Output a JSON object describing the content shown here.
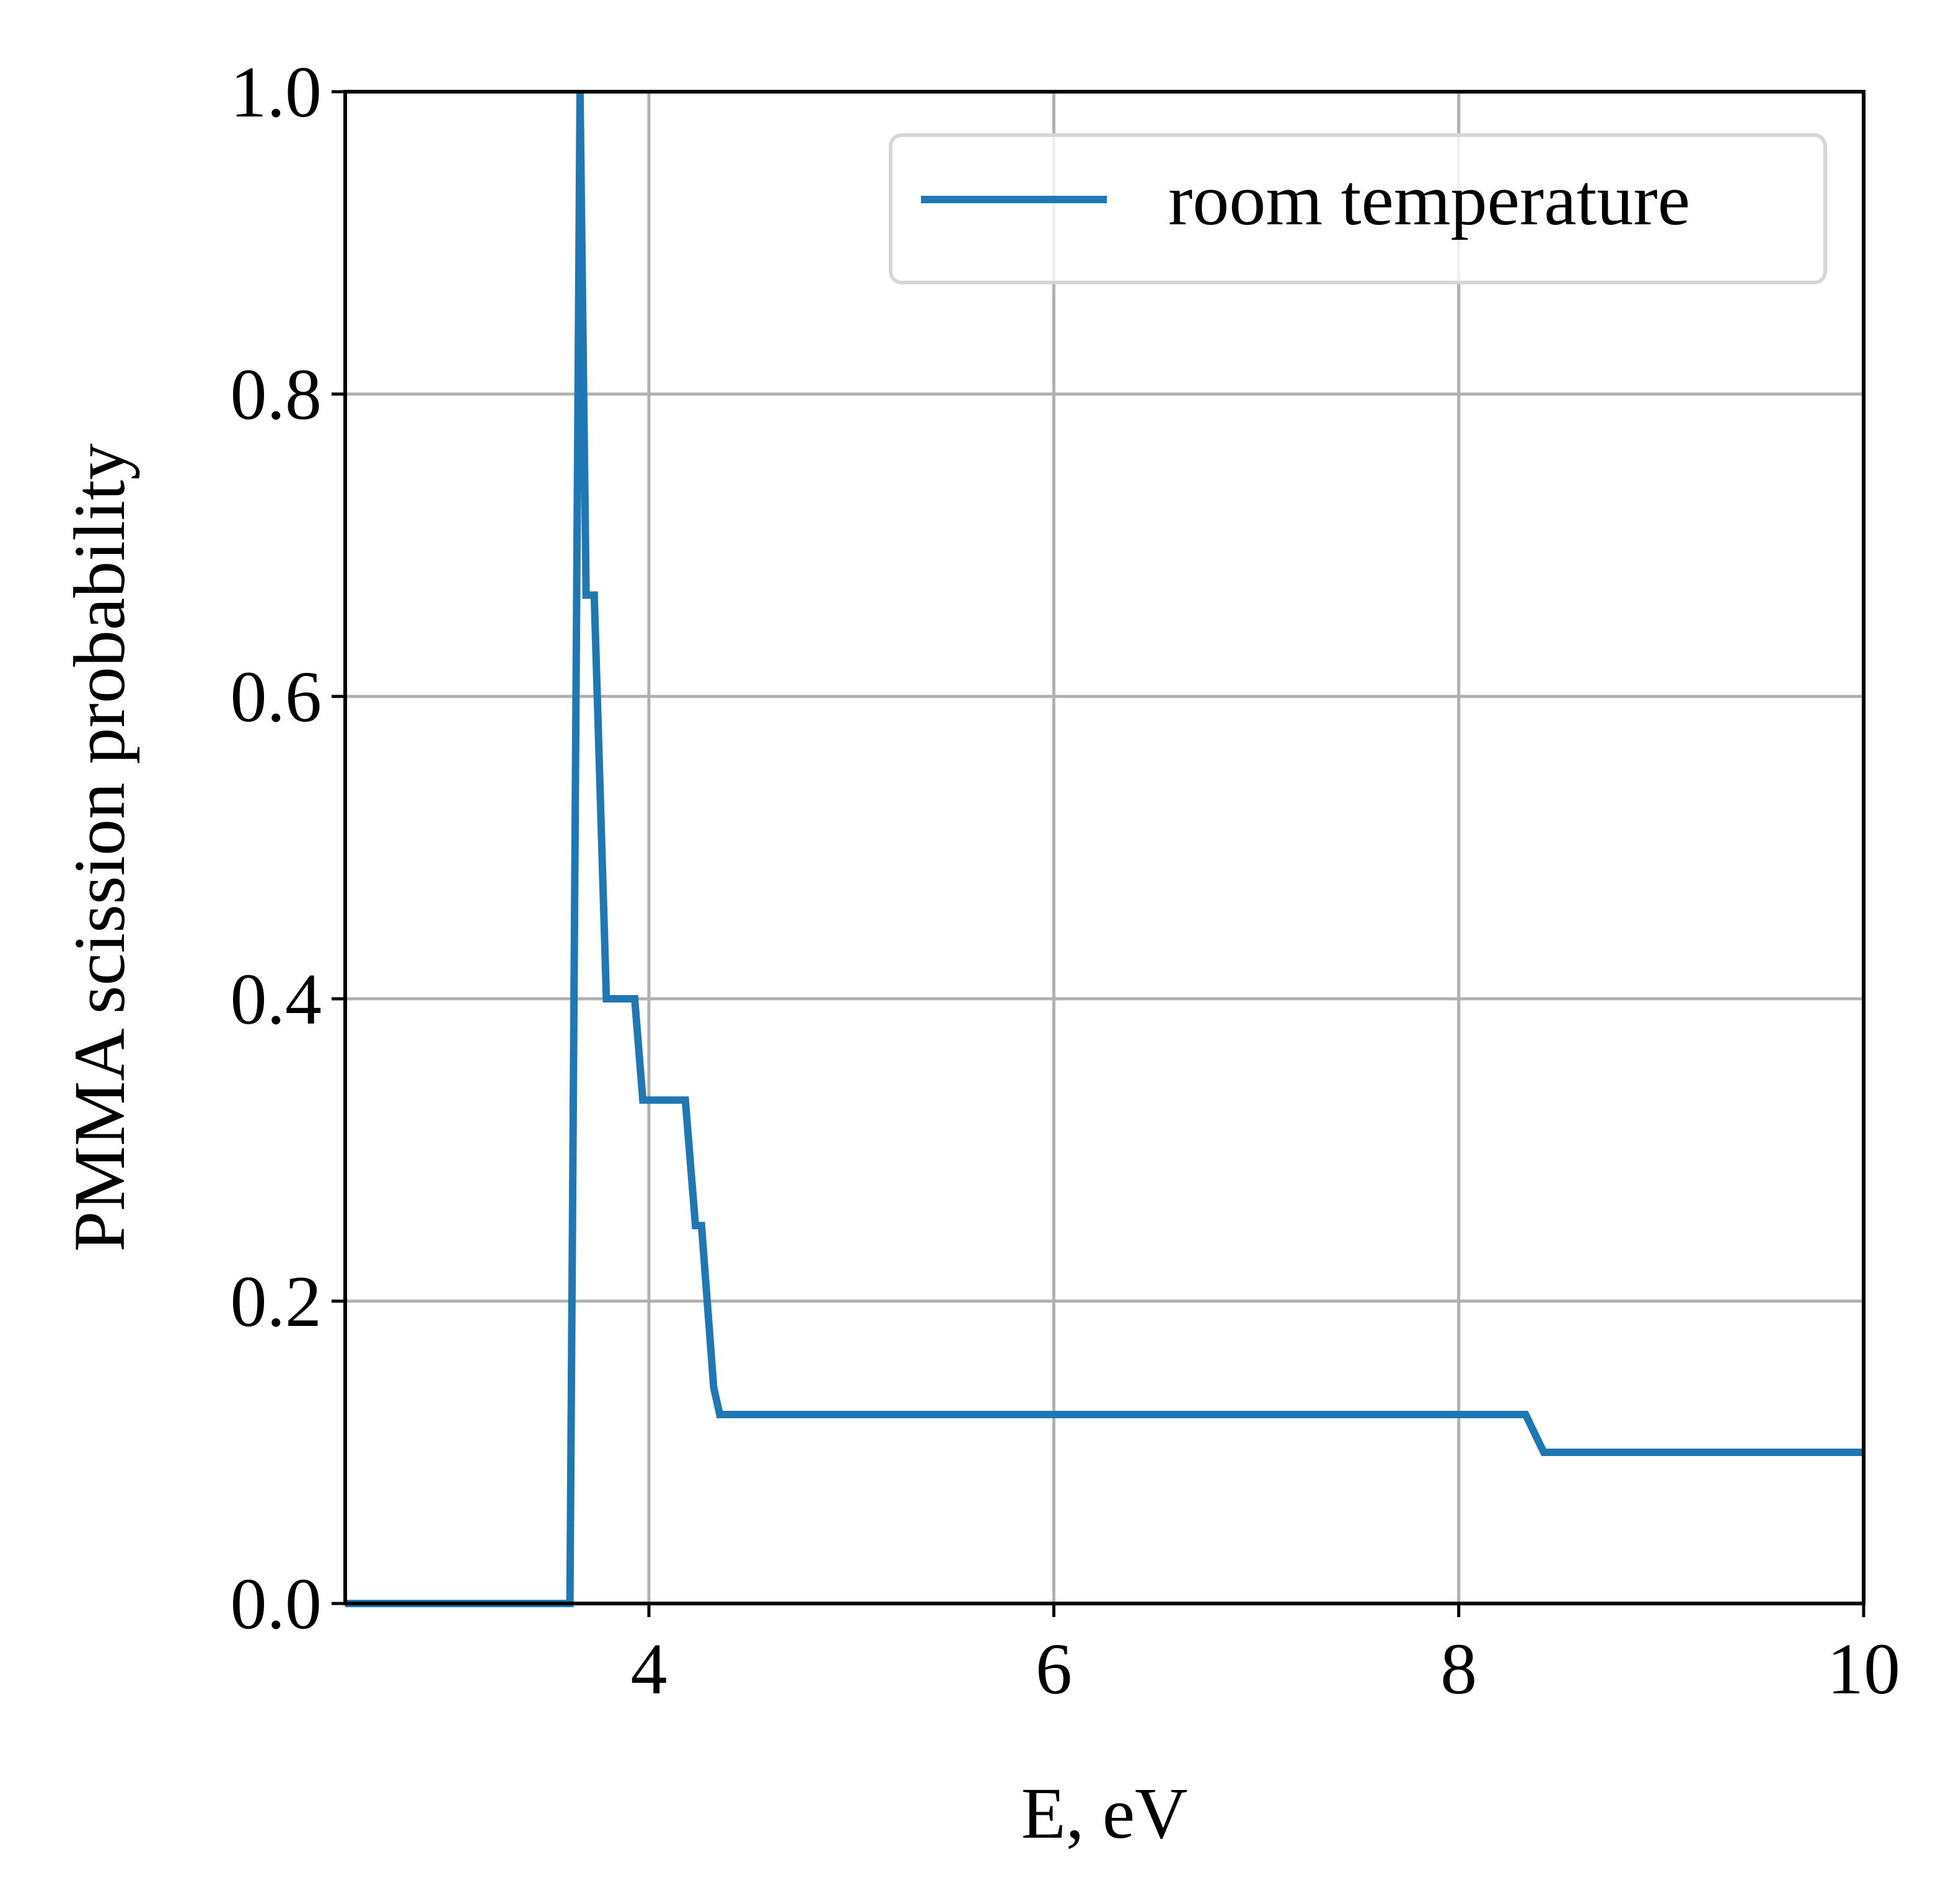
{
  "chart_data": {
    "type": "line",
    "title": "",
    "xlabel": "E, eV",
    "ylabel": "PMMA scission probability",
    "xlim": [
      2.5,
      10
    ],
    "ylim": [
      0,
      1.0
    ],
    "x_ticks": [
      4,
      6,
      8,
      10
    ],
    "x_tick_labels": [
      "4",
      "6",
      "8",
      "10"
    ],
    "y_ticks": [
      0.0,
      0.2,
      0.4,
      0.6,
      0.8,
      1.0
    ],
    "y_tick_labels": [
      "0.0",
      "0.2",
      "0.4",
      "0.6",
      "0.8",
      "1.0"
    ],
    "grid": true,
    "legend_position": "top-right",
    "series": [
      {
        "name": "room temperature",
        "color": "#1f77b4",
        "x": [
          2.5,
          3.61,
          3.66,
          3.69,
          3.69,
          3.73,
          3.73,
          3.79,
          3.93,
          3.97,
          4.18,
          4.23,
          4.26,
          4.32,
          4.35,
          8.33,
          8.42,
          10.0
        ],
        "y": [
          0.0,
          0.0,
          1.0,
          0.667,
          0.667,
          0.667,
          0.667,
          0.4,
          0.4,
          0.333,
          0.333,
          0.25,
          0.25,
          0.143,
          0.125,
          0.125,
          0.1,
          0.1
        ]
      }
    ]
  }
}
